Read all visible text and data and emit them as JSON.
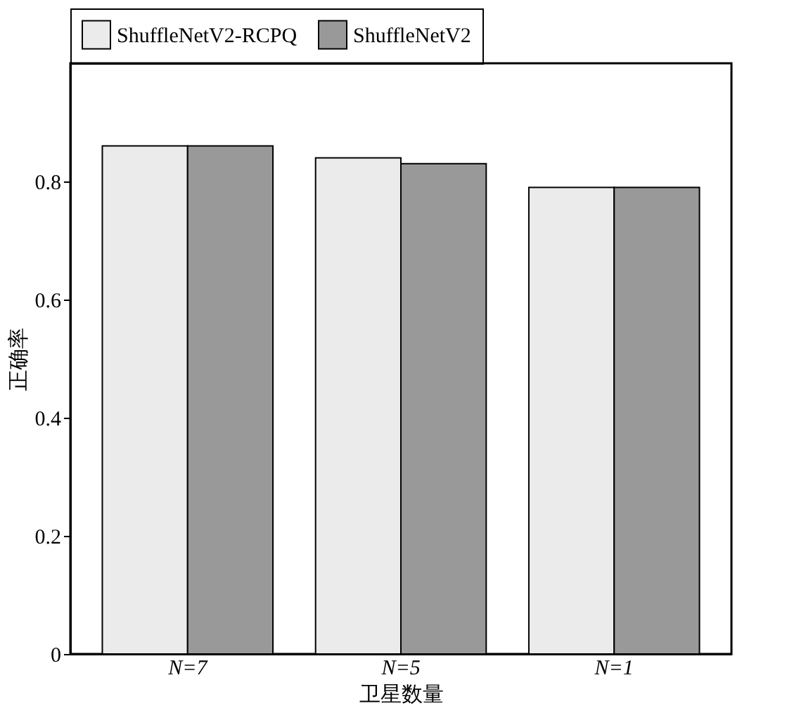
{
  "chart_data": {
    "type": "bar",
    "xlabel": "卫星数量",
    "ylabel": "正确率",
    "categories": [
      "N=7",
      "N=5",
      "N=1"
    ],
    "series": [
      {
        "name": "ShuffleNetV2-RCPQ",
        "color": "#ebebeb",
        "values": [
          0.86,
          0.84,
          0.79
        ]
      },
      {
        "name": "ShuffleNetV2",
        "color": "#999999",
        "values": [
          0.86,
          0.83,
          0.79
        ]
      }
    ],
    "ylim": [
      0,
      1
    ],
    "yticks": [
      0,
      0.2,
      0.4,
      0.6,
      0.8
    ],
    "grid": false,
    "legend": "top"
  }
}
